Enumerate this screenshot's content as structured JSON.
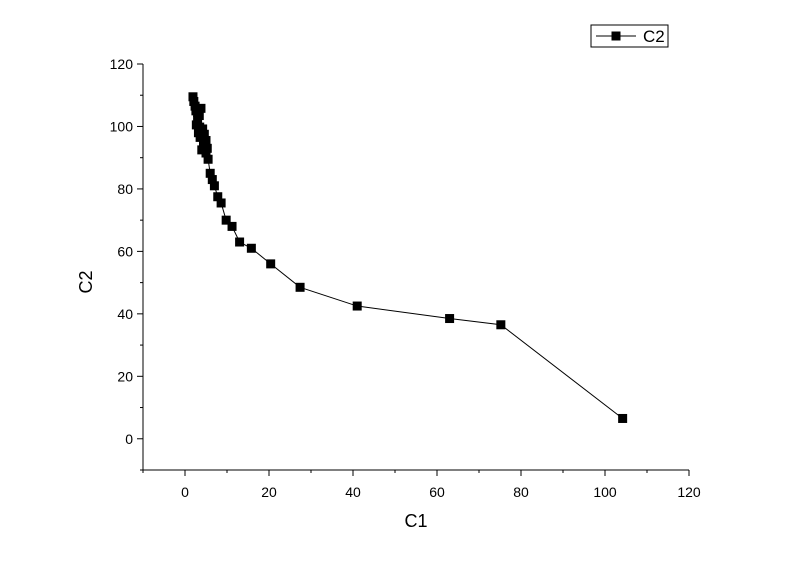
{
  "chart_data": {
    "type": "line",
    "xlabel": "C1",
    "ylabel": "C2",
    "xlim": [
      -10,
      120
    ],
    "ylim": [
      -10,
      120
    ],
    "xticks": [
      0,
      20,
      40,
      60,
      80,
      100,
      120
    ],
    "yticks": [
      0,
      20,
      40,
      60,
      80,
      100,
      120
    ],
    "grid": false,
    "legend_position": "top-right",
    "series": [
      {
        "name": "C2",
        "marker": "square",
        "color": "#000000",
        "x": [
          1.9,
          2.1,
          2.4,
          2.6,
          3.0,
          3.4,
          3.8,
          3.0,
          2.7,
          3.5,
          4.2,
          3.2,
          4.6,
          3.6,
          5.0,
          4.4,
          5.3,
          4.0,
          5.0,
          5.5,
          6.0,
          6.5,
          7.0,
          7.8,
          8.6,
          9.8,
          11.2,
          13.0,
          15.8,
          20.4,
          27.4,
          41.0,
          63.0,
          75.2,
          104.2
        ],
        "y": [
          109.5,
          108.0,
          106.5,
          105.0,
          104.5,
          103.5,
          105.8,
          102.0,
          100.5,
          99.8,
          99.2,
          98.0,
          97.5,
          96.5,
          95.5,
          94.0,
          93.0,
          92.5,
          91.5,
          89.5,
          85.0,
          83.0,
          81.0,
          77.5,
          75.5,
          70.0,
          68.0,
          63.0,
          61.0,
          56.0,
          48.5,
          42.5,
          38.5,
          36.5,
          6.5
        ]
      }
    ]
  }
}
